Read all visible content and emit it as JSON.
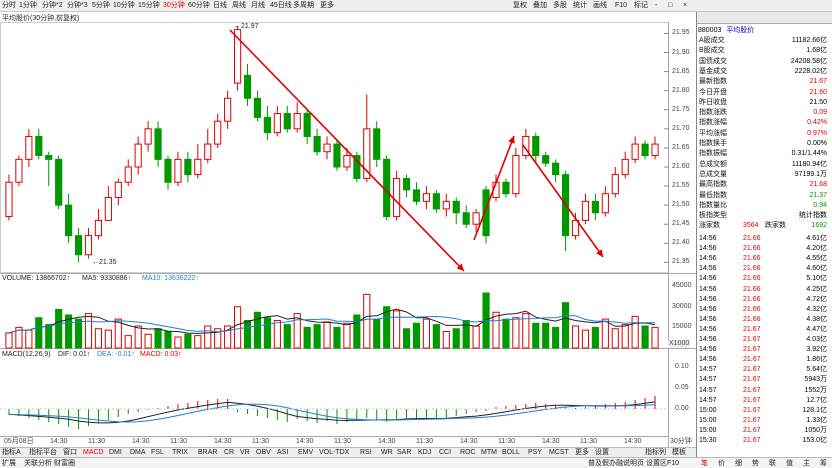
{
  "toolbar": {
    "periods": [
      "分时",
      "1分钟",
      "分钟*2",
      "分钟*3",
      "5分钟",
      "10分钟",
      "15分钟",
      "30分钟",
      "60分钟",
      "日线",
      "周线",
      "月线",
      "45日线",
      "多周期",
      "更多"
    ],
    "active_period": "30分钟",
    "right_buttons": [
      "复权",
      "叠加",
      "多股",
      "统计",
      "画线",
      "F10",
      "标记",
      "-",
      "□",
      "×"
    ]
  },
  "chart_title": "平均股价(30分钟,前复权)",
  "main_chart": {
    "y_ticks": [
      "21.95",
      "21.90",
      "21.85",
      "21.80",
      "21.75",
      "21.70",
      "21.65",
      "21.60",
      "21.55",
      "21.50",
      "21.45",
      "21.40",
      "21.35"
    ],
    "high_label": "21.97",
    "low_label": "21.35"
  },
  "volume_panel": {
    "legend_volume": "VOLUME: 13866702↑",
    "legend_ma5": "MA5: 9330886↑",
    "legend_ma10": "MA10: 13636222↑",
    "y_ticks": [
      "45000",
      "30000",
      "15000"
    ],
    "unit": "X1000"
  },
  "macd_panel": {
    "legend_title": "MACD(12,26,9)",
    "legend_dif": "DIF: 0.01↑",
    "legend_dea": "DEA: -0.01↑",
    "legend_macd": "MACD: 0.03↑",
    "y_ticks": [
      "0.10",
      "0.05",
      "0.00"
    ]
  },
  "time_axis": {
    "labels": [
      "05月08日",
      "14:30",
      "11:30",
      "14:30",
      "11:30",
      "14:30",
      "11:30",
      "14:30",
      "11:30",
      "14:30",
      "11:30",
      "14:30",
      "11:30",
      "14:30",
      "11:30",
      "14:30"
    ],
    "unit": "30分钟"
  },
  "indicator_tabs": [
    "指标A",
    "指标平台",
    "窗口",
    "MACD",
    "DMI",
    "DMA",
    "FSL",
    "TRIX",
    "BRAR",
    "CR",
    "VR",
    "OBV",
    "ASI",
    "EMV",
    "VOL-TDX",
    "RSI",
    "WR",
    "SAR",
    "KDJ",
    "CCI",
    "ROC",
    "MTM",
    "BOLL",
    "PSY",
    "MCST",
    "更多",
    "设置"
  ],
  "active_indicator": "MACD",
  "bottom_right_tabs": [
    "指标列",
    "模板"
  ],
  "panel": {
    "code": "880003",
    "name": "平均股价",
    "stats": [
      {
        "label": "A股成交",
        "value": "11182.66亿",
        "cls": "blk"
      },
      {
        "label": "B股成交",
        "value": "1.68亿",
        "cls": "blk"
      },
      {
        "label": "国债成交",
        "value": "24208.58亿",
        "cls": "blk"
      },
      {
        "label": "基金成交",
        "value": "2228.02亿",
        "cls": "blk"
      },
      {
        "label": "最新指数",
        "value": "21.67",
        "cls": "up"
      },
      {
        "label": "今日开盘",
        "value": "21.60",
        "cls": "up"
      },
      {
        "label": "昨日收盘",
        "value": "21.50",
        "cls": "blk"
      },
      {
        "label": "指数涨跌",
        "value": "0.09",
        "cls": "up"
      },
      {
        "label": "指数涨幅",
        "value": "0.42%",
        "cls": "up"
      },
      {
        "label": "平均涨幅",
        "value": "0.97%",
        "cls": "up"
      },
      {
        "label": "指数换手",
        "value": "0.00%",
        "cls": "blk"
      },
      {
        "label": "指数振幅",
        "value": "0.31/1.44%",
        "cls": "blk"
      },
      {
        "label": "总成交额",
        "value": "11180.94亿",
        "cls": "blk"
      },
      {
        "label": "总成交量",
        "value": "97199.1万",
        "cls": "blk"
      },
      {
        "label": "最高指数",
        "value": "21.68",
        "cls": "up"
      },
      {
        "label": "最低指数",
        "value": "21.37",
        "cls": "dn"
      },
      {
        "label": "指数量比",
        "value": "0.94",
        "cls": "dn"
      },
      {
        "label": "板指类型",
        "value": "统计指数",
        "cls": "blk"
      }
    ],
    "updown": {
      "up_label": "涨家数",
      "up_value": "3564",
      "down_label": "跌家数",
      "down_value": "1692"
    },
    "ticks": [
      {
        "t": "14:56",
        "p": "21.66",
        "v": "4.61亿"
      },
      {
        "t": "14:56",
        "p": "21.66",
        "v": "4.20亿"
      },
      {
        "t": "14:56",
        "p": "21.66",
        "v": "4.55亿"
      },
      {
        "t": "14:56",
        "p": "21.66",
        "v": "4.60亿"
      },
      {
        "t": "14:56",
        "p": "21.66",
        "v": "5.10亿"
      },
      {
        "t": "14:56",
        "p": "21.66",
        "v": "4.25亿"
      },
      {
        "t": "14:56",
        "p": "21.66",
        "v": "4.72亿"
      },
      {
        "t": "14:56",
        "p": "21.66",
        "v": "4.32亿"
      },
      {
        "t": "14:56",
        "p": "21.66",
        "v": "4.38亿"
      },
      {
        "t": "14:56",
        "p": "21.67",
        "v": "4.47亿"
      },
      {
        "t": "14:56",
        "p": "21.67",
        "v": "4.03亿"
      },
      {
        "t": "14:56",
        "p": "21.67",
        "v": "3.92亿"
      },
      {
        "t": "14:56",
        "p": "21.67",
        "v": "1.86亿"
      },
      {
        "t": "14:57",
        "p": "21.67",
        "v": "5.64亿"
      },
      {
        "t": "14:57",
        "p": "21.67",
        "v": "5943万"
      },
      {
        "t": "14:57",
        "p": "21.67",
        "v": "1552万"
      },
      {
        "t": "14:57",
        "p": "21.67",
        "v": "12.7亿"
      },
      {
        "t": "15:00",
        "p": "21.67",
        "v": "128.1亿"
      },
      {
        "t": "15:00",
        "p": "21.67",
        "v": "1.33亿"
      },
      {
        "t": "15:00",
        "p": "21.67",
        "v": "1050万"
      },
      {
        "t": "15:30",
        "p": "21.67",
        "v": "153.0亿"
      }
    ]
  },
  "status": {
    "left": [
      "扩展",
      "关联分析",
      "财富圈"
    ],
    "right": "普及假办融说明页 设置区F10",
    "panel_tabs": [
      "笔",
      "价",
      "细",
      "势",
      "联",
      "值",
      "主",
      "筹"
    ]
  },
  "colors": {
    "up": "#e00000",
    "down": "#009900",
    "trend": "#e00000"
  },
  "candles": [
    {
      "o": 21.47,
      "c": 21.56,
      "h": 21.58,
      "l": 21.46
    },
    {
      "o": 21.56,
      "c": 21.62,
      "h": 21.63,
      "l": 21.55
    },
    {
      "o": 21.62,
      "c": 21.68,
      "h": 21.7,
      "l": 21.6
    },
    {
      "o": 21.68,
      "c": 21.63,
      "h": 21.7,
      "l": 21.62
    },
    {
      "o": 21.63,
      "c": 21.62,
      "h": 21.64,
      "l": 21.55
    },
    {
      "o": 21.62,
      "c": 21.5,
      "h": 21.63,
      "l": 21.49
    },
    {
      "o": 21.5,
      "c": 21.42,
      "h": 21.53,
      "l": 21.4
    },
    {
      "o": 21.42,
      "c": 21.37,
      "h": 21.44,
      "l": 21.35
    },
    {
      "o": 21.37,
      "c": 21.42,
      "h": 21.44,
      "l": 21.36
    },
    {
      "o": 21.42,
      "c": 21.46,
      "h": 21.49,
      "l": 21.41
    },
    {
      "o": 21.46,
      "c": 21.52,
      "h": 21.55,
      "l": 21.46
    },
    {
      "o": 21.52,
      "c": 21.56,
      "h": 21.57,
      "l": 21.5
    },
    {
      "o": 21.56,
      "c": 21.6,
      "h": 21.62,
      "l": 21.55
    },
    {
      "o": 21.6,
      "c": 21.66,
      "h": 21.68,
      "l": 21.58
    },
    {
      "o": 21.66,
      "c": 21.7,
      "h": 21.72,
      "l": 21.64
    },
    {
      "o": 21.7,
      "c": 21.62,
      "h": 21.72,
      "l": 21.6
    },
    {
      "o": 21.62,
      "c": 21.56,
      "h": 21.63,
      "l": 21.54
    },
    {
      "o": 21.56,
      "c": 21.62,
      "h": 21.64,
      "l": 21.55
    },
    {
      "o": 21.62,
      "c": 21.58,
      "h": 21.64,
      "l": 21.56
    },
    {
      "o": 21.58,
      "c": 21.62,
      "h": 21.66,
      "l": 21.57
    },
    {
      "o": 21.62,
      "c": 21.66,
      "h": 21.7,
      "l": 21.61
    },
    {
      "o": 21.66,
      "c": 21.72,
      "h": 21.74,
      "l": 21.65
    },
    {
      "o": 21.72,
      "c": 21.78,
      "h": 21.8,
      "l": 21.7
    },
    {
      "o": 21.82,
      "c": 21.96,
      "h": 21.97,
      "l": 21.8
    },
    {
      "o": 21.84,
      "c": 21.78,
      "h": 21.87,
      "l": 21.76
    },
    {
      "o": 21.78,
      "c": 21.73,
      "h": 21.8,
      "l": 21.72
    },
    {
      "o": 21.73,
      "c": 21.69,
      "h": 21.76,
      "l": 21.67
    },
    {
      "o": 21.69,
      "c": 21.74,
      "h": 21.76,
      "l": 21.68
    },
    {
      "o": 21.74,
      "c": 21.7,
      "h": 21.76,
      "l": 21.69
    },
    {
      "o": 21.7,
      "c": 21.74,
      "h": 21.77,
      "l": 21.69
    },
    {
      "o": 21.74,
      "c": 21.68,
      "h": 21.75,
      "l": 21.66
    },
    {
      "o": 21.68,
      "c": 21.64,
      "h": 21.7,
      "l": 21.63
    },
    {
      "o": 21.64,
      "c": 21.66,
      "h": 21.68,
      "l": 21.62
    },
    {
      "o": 21.66,
      "c": 21.6,
      "h": 21.67,
      "l": 21.59
    },
    {
      "o": 21.6,
      "c": 21.63,
      "h": 21.65,
      "l": 21.59
    },
    {
      "o": 21.63,
      "c": 21.57,
      "h": 21.64,
      "l": 21.56
    },
    {
      "o": 21.57,
      "c": 21.7,
      "h": 21.79,
      "l": 21.56
    },
    {
      "o": 21.7,
      "c": 21.62,
      "h": 21.72,
      "l": 21.6
    },
    {
      "o": 21.62,
      "c": 21.47,
      "h": 21.63,
      "l": 21.46
    },
    {
      "o": 21.47,
      "c": 21.57,
      "h": 21.59,
      "l": 21.46
    },
    {
      "o": 21.57,
      "c": 21.54,
      "h": 21.58,
      "l": 21.52
    },
    {
      "o": 21.54,
      "c": 21.51,
      "h": 21.56,
      "l": 21.5
    },
    {
      "o": 21.51,
      "c": 21.53,
      "h": 21.55,
      "l": 21.49
    },
    {
      "o": 21.53,
      "c": 21.49,
      "h": 21.54,
      "l": 21.48
    },
    {
      "o": 21.49,
      "c": 21.51,
      "h": 21.53,
      "l": 21.47
    },
    {
      "o": 21.51,
      "c": 21.48,
      "h": 21.52,
      "l": 21.45
    },
    {
      "o": 21.48,
      "c": 21.45,
      "h": 21.5,
      "l": 21.44
    },
    {
      "o": 21.45,
      "c": 21.48,
      "h": 21.49,
      "l": 21.43
    },
    {
      "o": 21.54,
      "c": 21.42,
      "h": 21.55,
      "l": 21.4
    },
    {
      "o": 21.52,
      "c": 21.56,
      "h": 21.58,
      "l": 21.51
    },
    {
      "o": 21.56,
      "c": 21.53,
      "h": 21.57,
      "l": 21.52
    },
    {
      "o": 21.53,
      "c": 21.63,
      "h": 21.65,
      "l": 21.52
    },
    {
      "o": 21.63,
      "c": 21.68,
      "h": 21.7,
      "l": 21.62
    },
    {
      "o": 21.68,
      "c": 21.63,
      "h": 21.69,
      "l": 21.61
    },
    {
      "o": 21.63,
      "c": 21.61,
      "h": 21.64,
      "l": 21.6
    },
    {
      "o": 21.61,
      "c": 21.58,
      "h": 21.62,
      "l": 21.56
    },
    {
      "o": 21.58,
      "c": 21.42,
      "h": 21.59,
      "l": 21.38
    },
    {
      "o": 21.42,
      "c": 21.46,
      "h": 21.48,
      "l": 21.41
    },
    {
      "o": 21.46,
      "c": 21.51,
      "h": 21.53,
      "l": 21.45
    },
    {
      "o": 21.51,
      "c": 21.48,
      "h": 21.53,
      "l": 21.46
    },
    {
      "o": 21.48,
      "c": 21.53,
      "h": 21.55,
      "l": 21.47
    },
    {
      "o": 21.53,
      "c": 21.58,
      "h": 21.6,
      "l": 21.52
    },
    {
      "o": 21.58,
      "c": 21.62,
      "h": 21.64,
      "l": 21.57
    },
    {
      "o": 21.62,
      "c": 21.66,
      "h": 21.68,
      "l": 21.61
    },
    {
      "o": 21.66,
      "c": 21.63,
      "h": 21.67,
      "l": 21.62
    },
    {
      "o": 21.63,
      "c": 21.66,
      "h": 21.68,
      "l": 21.62
    }
  ],
  "volumes": [
    11,
    15,
    13,
    22,
    17,
    28,
    24,
    21,
    25,
    14,
    13,
    21,
    9,
    16,
    10,
    14,
    12,
    8,
    10,
    9,
    16,
    14,
    16,
    30,
    20,
    26,
    22,
    20,
    17,
    25,
    15,
    17,
    19,
    15,
    18,
    24,
    39,
    21,
    30,
    27,
    14,
    18,
    21,
    17,
    12,
    14,
    20,
    16,
    40,
    26,
    21,
    22,
    25,
    18,
    18,
    15,
    33,
    16,
    13,
    15,
    21,
    14,
    17,
    23,
    16,
    15
  ],
  "macd": [
    -0.012,
    -0.014,
    -0.018,
    -0.022,
    -0.026,
    -0.03,
    -0.036,
    -0.04,
    -0.034,
    -0.028,
    -0.022,
    -0.016,
    -0.01,
    -0.006,
    -0.002,
    0.002,
    0.006,
    0.01,
    0.012,
    0.016,
    0.018,
    0.02,
    0.02,
    -0.006,
    -0.01,
    -0.014,
    -0.018,
    -0.022,
    -0.026,
    -0.02,
    -0.024,
    -0.028,
    -0.024,
    -0.03,
    -0.026,
    -0.022,
    -0.018,
    -0.022,
    -0.026,
    -0.022,
    -0.018,
    -0.022,
    -0.02,
    -0.018,
    -0.02,
    -0.014,
    -0.01,
    -0.006,
    -0.004,
    0.004,
    0.006,
    0.008,
    0.01,
    0.012,
    0.01,
    0.008,
    0.004,
    0.002,
    0.004,
    0.008,
    0.01,
    0.012,
    0.014,
    0.018,
    0.022,
    0.026
  ]
}
